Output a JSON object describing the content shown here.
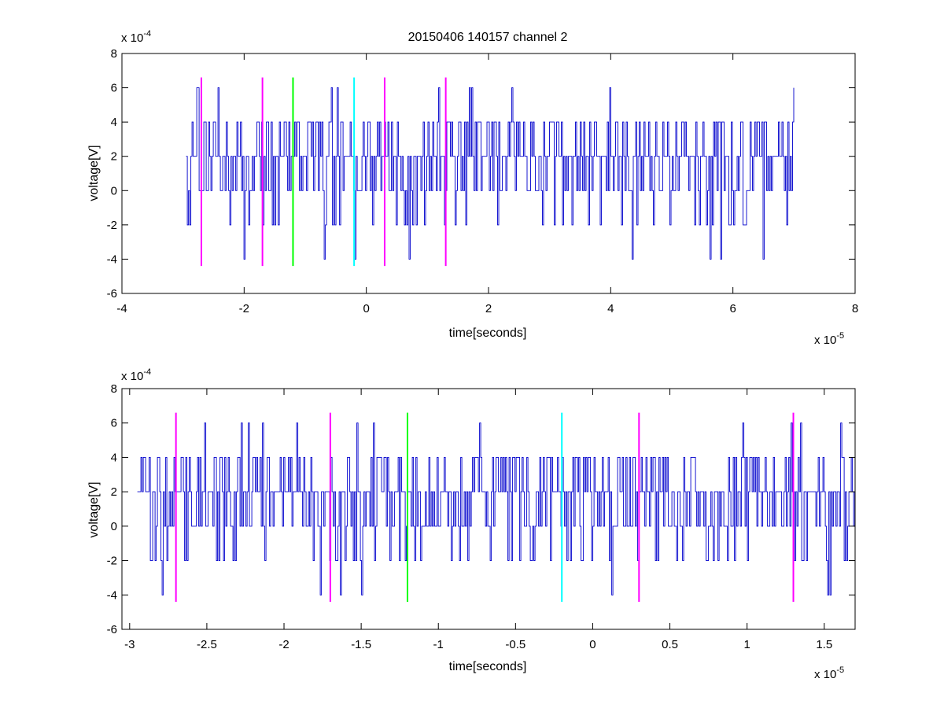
{
  "figure": {
    "title": "20150406 140157 channel 2"
  },
  "chart_data": [
    {
      "type": "line",
      "xlabel": "time[seconds]",
      "ylabel": "voltage[V]",
      "x_multiplier_label": "x 10",
      "x_multiplier_exp": "-5",
      "y_multiplier_label": "x 10",
      "y_multiplier_exp": "-4",
      "xlim": [
        -4e-05,
        8e-05
      ],
      "ylim": [
        -0.0006,
        0.0008
      ],
      "x_ticks": [
        -4,
        -2,
        0,
        2,
        4,
        6,
        8
      ],
      "x_tick_labels": [
        "-4",
        "-2",
        "0",
        "2",
        "4",
        "6",
        "8"
      ],
      "y_ticks": [
        -6,
        -4,
        -2,
        0,
        2,
        4,
        6,
        8
      ],
      "y_tick_labels": [
        "-6",
        "-4",
        "-2",
        "0",
        "2",
        "4",
        "6",
        "8"
      ],
      "signal": {
        "color": "#0000cc",
        "x_start": -2.95e-05,
        "x_end": 7e-05,
        "levels_V": [
          -0.0004,
          -0.0002,
          0,
          0.0002,
          0.0004,
          0.0006
        ]
      },
      "markers": [
        {
          "x": -2.7e-05,
          "color": "#ff00ff",
          "y_from": -0.00044,
          "y_to": 0.00066
        },
        {
          "x": -1.7e-05,
          "color": "#ff00ff",
          "y_from": -0.00044,
          "y_to": 0.00066
        },
        {
          "x": -1.2e-05,
          "color": "#00ff00",
          "y_from": -0.00044,
          "y_to": 0.00066
        },
        {
          "x": -2e-06,
          "color": "#00ffff",
          "y_from": -0.00044,
          "y_to": 0.00066
        },
        {
          "x": 3e-06,
          "color": "#ff00ff",
          "y_from": -0.00044,
          "y_to": 0.00066
        },
        {
          "x": 1.3e-05,
          "color": "#ff00ff",
          "y_from": -0.00044,
          "y_to": 0.00066
        }
      ],
      "grid": false
    },
    {
      "type": "line",
      "xlabel": "time[seconds]",
      "ylabel": "voltage[V]",
      "x_multiplier_label": "x 10",
      "x_multiplier_exp": "-5",
      "y_multiplier_label": "x 10",
      "y_multiplier_exp": "-4",
      "xlim": [
        -3.05e-05,
        1.7e-05
      ],
      "ylim": [
        -0.0006,
        0.0008
      ],
      "x_ticks": [
        -3,
        -2.5,
        -2,
        -1.5,
        -1,
        -0.5,
        0,
        0.5,
        1,
        1.5
      ],
      "x_tick_labels": [
        "-3",
        "-2.5",
        "-2",
        "-1.5",
        "-1",
        "-0.5",
        "0",
        "0.5",
        "1",
        "1.5"
      ],
      "y_ticks": [
        -6,
        -4,
        -2,
        0,
        2,
        4,
        6,
        8
      ],
      "y_tick_labels": [
        "-6",
        "-4",
        "-2",
        "0",
        "2",
        "4",
        "6",
        "8"
      ],
      "signal": {
        "color": "#0000cc",
        "x_start": -2.95e-05,
        "x_end": 1.7e-05,
        "levels_V": [
          -0.0004,
          -0.0002,
          0,
          0.0002,
          0.0004,
          0.0006
        ]
      },
      "markers": [
        {
          "x": -2.7e-05,
          "color": "#ff00ff",
          "y_from": -0.00044,
          "y_to": 0.00066
        },
        {
          "x": -1.7e-05,
          "color": "#ff00ff",
          "y_from": -0.00044,
          "y_to": 0.00066
        },
        {
          "x": -1.2e-05,
          "color": "#00ff00",
          "y_from": -0.00044,
          "y_to": 0.00066
        },
        {
          "x": -2e-06,
          "color": "#00ffff",
          "y_from": -0.00044,
          "y_to": 0.00066
        },
        {
          "x": 3e-06,
          "color": "#ff00ff",
          "y_from": -0.00044,
          "y_to": 0.00066
        },
        {
          "x": 1.3e-05,
          "color": "#ff00ff",
          "y_from": -0.00044,
          "y_to": 0.00066
        }
      ],
      "grid": false
    }
  ]
}
